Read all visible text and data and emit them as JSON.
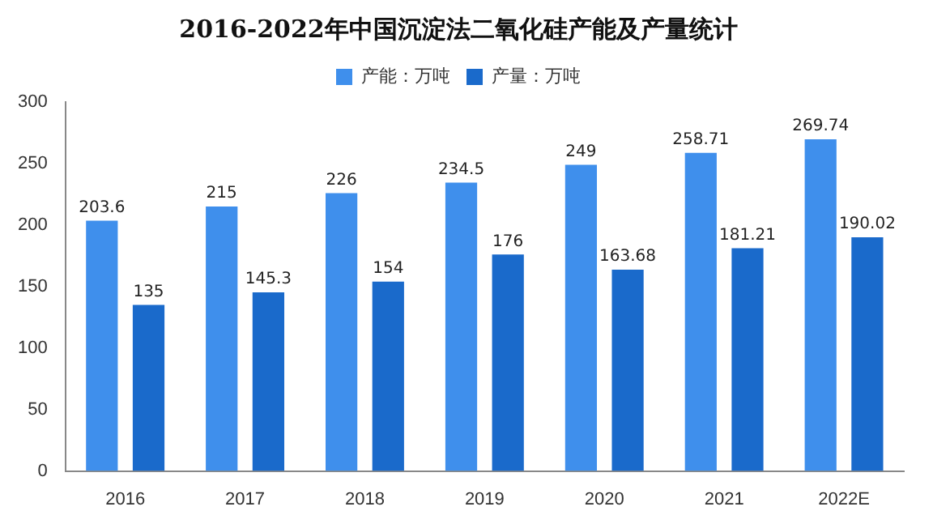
{
  "chart_data": {
    "type": "bar",
    "title": "2016-2022年中国沉淀法二氧化硅产能及产量统计",
    "categories": [
      "2016",
      "2017",
      "2018",
      "2019",
      "2020",
      "2021",
      "2022E"
    ],
    "series": [
      {
        "name": "产能：万吨",
        "color": "#3f8fec",
        "values": [
          203.6,
          215,
          226,
          234.5,
          249,
          258.71,
          269.74
        ]
      },
      {
        "name": "产量：万吨",
        "color": "#1a6acb",
        "values": [
          135,
          145.3,
          154,
          176,
          163.68,
          181.21,
          190.02
        ]
      }
    ],
    "ylim": [
      0,
      300
    ],
    "yticks": [
      0,
      50,
      100,
      150,
      200,
      250,
      300
    ],
    "grid": false,
    "legend": "top",
    "data_labels": true
  }
}
